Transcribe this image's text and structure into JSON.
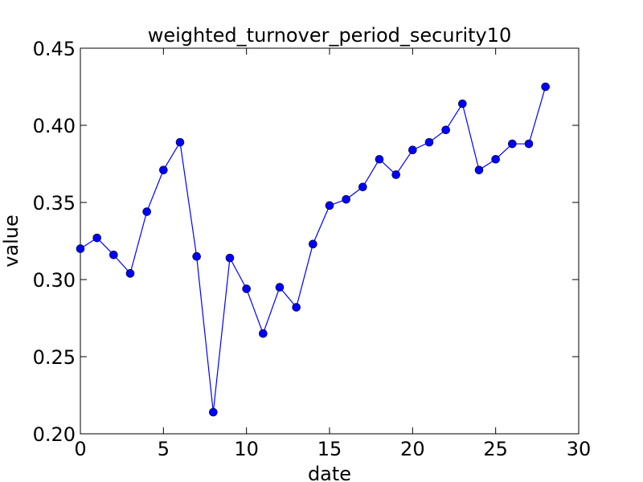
{
  "chart_data": {
    "type": "line",
    "title": "weighted_turnover_period_security10",
    "xlabel": "date",
    "ylabel": "value",
    "xlim": [
      0,
      30
    ],
    "ylim": [
      0.2,
      0.45
    ],
    "xticks": [
      "0",
      "5",
      "10",
      "15",
      "20",
      "25",
      "30"
    ],
    "yticks": [
      "0.20",
      "0.25",
      "0.30",
      "0.35",
      "0.40",
      "0.45"
    ],
    "grid": false,
    "series": [
      {
        "color": "#0000ff",
        "marker": "circle",
        "x": [
          0,
          1,
          2,
          3,
          4,
          5,
          6,
          7,
          8,
          9,
          10,
          11,
          12,
          13,
          14,
          15,
          16,
          17,
          18,
          19,
          20,
          21,
          22,
          23,
          24,
          25,
          26,
          27,
          28
        ],
        "y": [
          0.32,
          0.327,
          0.316,
          0.304,
          0.344,
          0.371,
          0.389,
          0.315,
          0.214,
          0.314,
          0.294,
          0.265,
          0.295,
          0.282,
          0.323,
          0.348,
          0.352,
          0.36,
          0.378,
          0.368,
          0.384,
          0.389,
          0.397,
          0.414,
          0.371,
          0.378,
          0.388,
          0.388,
          0.425
        ]
      }
    ]
  }
}
